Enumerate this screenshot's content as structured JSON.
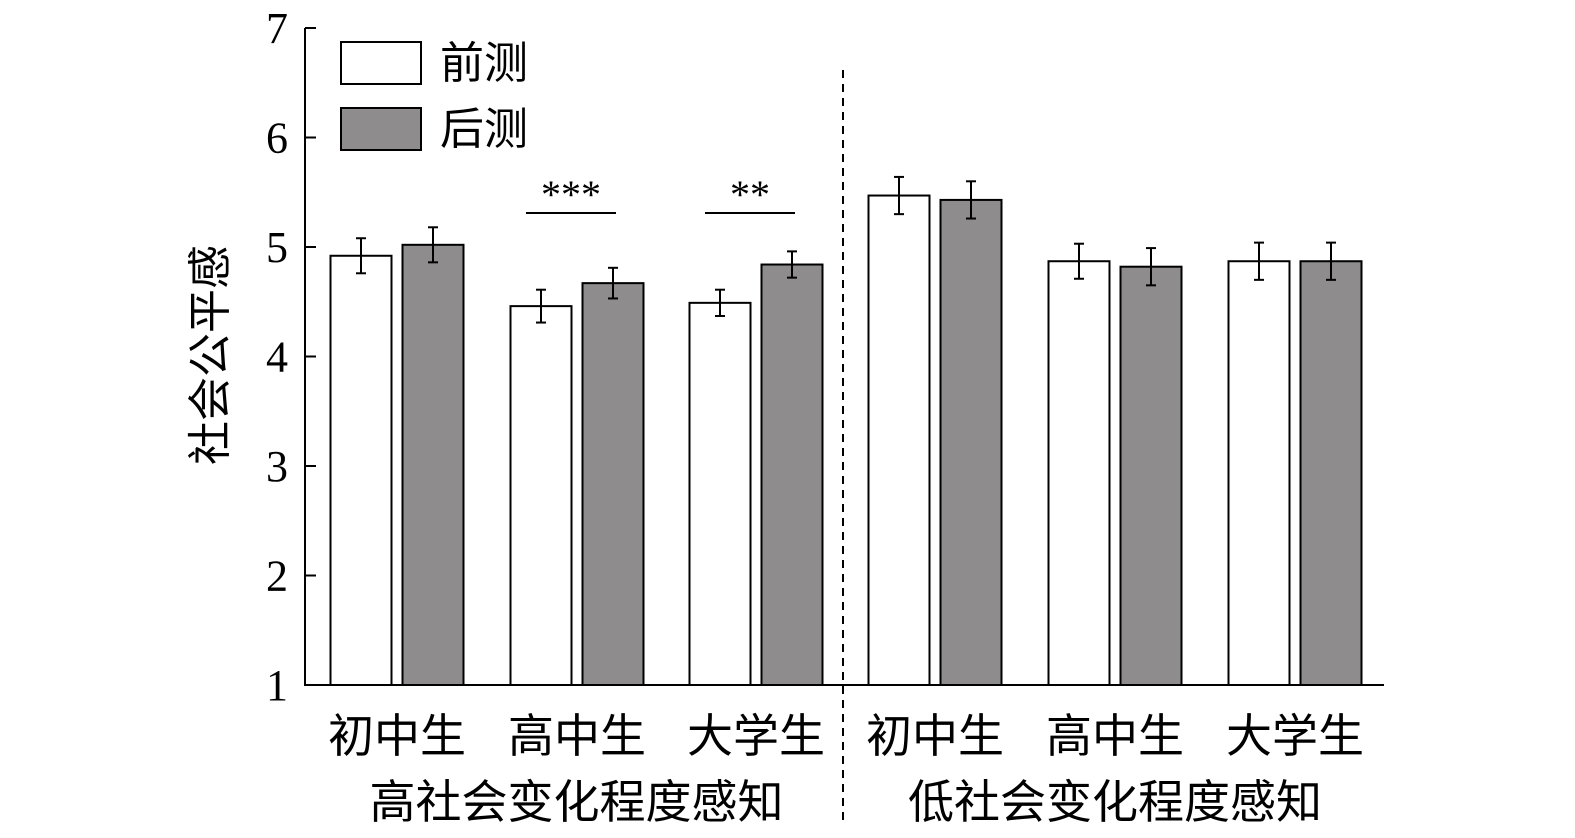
{
  "chart_data": {
    "type": "bar",
    "title": "",
    "ylabel": "社会公平感",
    "xlabel": "",
    "ylim": [
      1,
      7
    ],
    "yticks": [
      "1",
      "2",
      "3",
      "4",
      "5",
      "6",
      "7"
    ],
    "categories": [
      "初中生",
      "高中生",
      "大学生",
      "初中生",
      "高中生",
      "大学生"
    ],
    "groups": [
      {
        "label": "高社会变化程度感知",
        "categories": [
          0,
          1,
          2
        ]
      },
      {
        "label": "低社会变化程度感知",
        "categories": [
          3,
          4,
          5
        ]
      }
    ],
    "series": [
      {
        "name": "前测",
        "color": "#ffffff",
        "values": [
          4.92,
          4.46,
          4.49,
          5.47,
          4.87,
          4.87
        ],
        "errors": [
          0.16,
          0.15,
          0.12,
          0.17,
          0.16,
          0.17
        ]
      },
      {
        "name": "后测",
        "color": "#8e8c8d",
        "values": [
          5.02,
          4.67,
          4.84,
          5.43,
          4.82,
          4.87
        ],
        "errors": [
          0.16,
          0.14,
          0.12,
          0.17,
          0.17,
          0.17
        ]
      }
    ],
    "annotations": [
      {
        "category": 1,
        "text": "***"
      },
      {
        "category": 2,
        "text": "**"
      }
    ],
    "legend": "top-left",
    "grid": false
  }
}
